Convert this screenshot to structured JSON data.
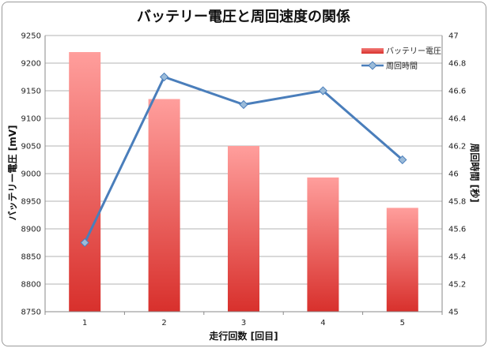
{
  "chart_data": {
    "type": "bar+line",
    "title": "バッテリー電圧と周回速度の関係",
    "xlabel": "走行回数 [回目]",
    "ylabel_left": "バッテリー電圧 [mV]",
    "ylabel_right": "周回時間 [秒]",
    "categories": [
      "1",
      "2",
      "3",
      "4",
      "5"
    ],
    "ylim_left": [
      8750,
      9250
    ],
    "yticks_left": [
      "8750",
      "8800",
      "8850",
      "8900",
      "8950",
      "9000",
      "9050",
      "9100",
      "9150",
      "9200",
      "9250"
    ],
    "ylim_right": [
      45,
      47
    ],
    "yticks_right": [
      "45",
      "45.2",
      "45.4",
      "45.6",
      "45.8",
      "46",
      "46.2",
      "46.4",
      "46.6",
      "46.8",
      "47"
    ],
    "grid": true,
    "legend_position": "top-right",
    "series": [
      {
        "name": "バッテリー電圧",
        "type": "bar",
        "axis": "left",
        "values": [
          9220,
          9135,
          9050,
          8993,
          8938
        ],
        "color": "#e0483f"
      },
      {
        "name": "周回時間",
        "type": "line",
        "axis": "right",
        "values": [
          45.5,
          46.7,
          46.5,
          46.6,
          46.1
        ],
        "color": "#4a7ebb"
      }
    ]
  }
}
